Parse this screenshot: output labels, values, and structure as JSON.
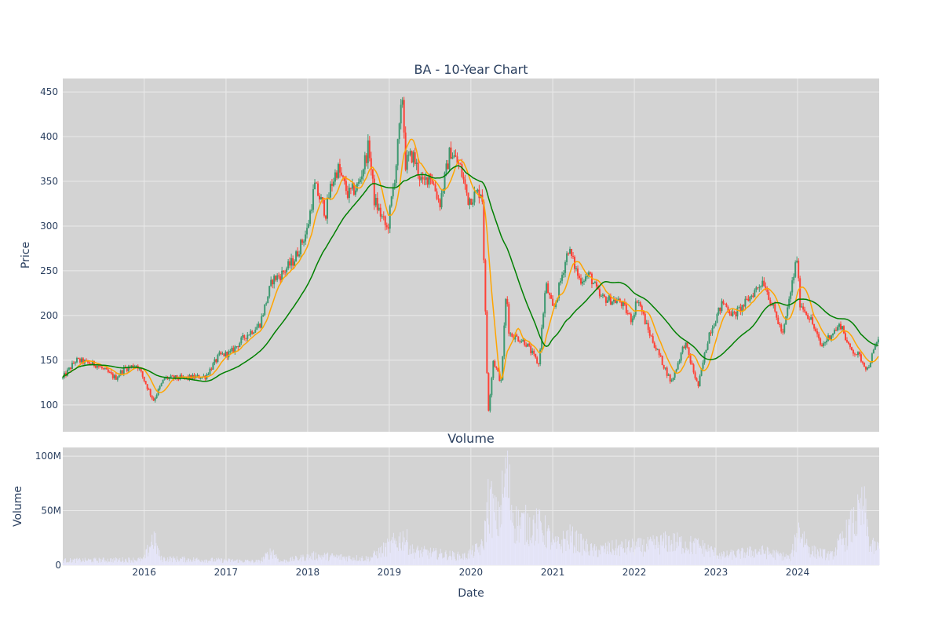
{
  "chart_data": [
    {
      "type": "candlestick",
      "title": "BA - 10-Year Chart",
      "ylabel": "Price",
      "xlabel": "",
      "x_range": [
        "2015-01-02",
        "2024-12-31"
      ],
      "ylim": [
        70,
        465
      ],
      "y_ticks": [
        100,
        150,
        200,
        250,
        300,
        350,
        400,
        450
      ],
      "grid": true,
      "colors": {
        "increasing": "#3d9970",
        "decreasing": "#ff4136",
        "ma_short": "#ffa500",
        "ma_long": "#008000",
        "plot_bg": "#d3d3d3",
        "grid": "#eaeaea"
      },
      "price_anchors": [
        [
          "2015-01-02",
          130
        ],
        [
          "2015-03-01",
          150
        ],
        [
          "2015-06-01",
          145
        ],
        [
          "2015-08-25",
          130
        ],
        [
          "2015-10-01",
          140
        ],
        [
          "2015-12-01",
          145
        ],
        [
          "2016-02-11",
          105
        ],
        [
          "2016-04-01",
          130
        ],
        [
          "2016-07-01",
          130
        ],
        [
          "2016-10-01",
          132
        ],
        [
          "2016-12-01",
          155
        ],
        [
          "2017-01-20",
          158
        ],
        [
          "2017-04-01",
          178
        ],
        [
          "2017-06-01",
          190
        ],
        [
          "2017-07-27",
          240
        ],
        [
          "2017-09-01",
          245
        ],
        [
          "2017-11-01",
          262
        ],
        [
          "2017-12-29",
          295
        ],
        [
          "2018-02-01",
          345
        ],
        [
          "2018-03-23",
          315
        ],
        [
          "2018-04-15",
          345
        ],
        [
          "2018-05-15",
          365
        ],
        [
          "2018-07-01",
          335
        ],
        [
          "2018-08-15",
          345
        ],
        [
          "2018-10-02",
          390
        ],
        [
          "2018-10-25",
          330
        ],
        [
          "2018-12-24",
          295
        ],
        [
          "2019-01-30",
          365
        ],
        [
          "2019-03-01",
          445
        ],
        [
          "2019-03-15",
          370
        ],
        [
          "2019-04-15",
          380
        ],
        [
          "2019-06-01",
          345
        ],
        [
          "2019-07-01",
          360
        ],
        [
          "2019-08-15",
          325
        ],
        [
          "2019-10-01",
          385
        ],
        [
          "2019-11-15",
          365
        ],
        [
          "2019-12-20",
          330
        ],
        [
          "2020-02-20",
          340
        ],
        [
          "2020-03-18",
          90
        ],
        [
          "2020-04-10",
          150
        ],
        [
          "2020-05-15",
          125
        ],
        [
          "2020-06-08",
          230
        ],
        [
          "2020-06-20",
          180
        ],
        [
          "2020-09-01",
          170
        ],
        [
          "2020-10-30",
          145
        ],
        [
          "2020-12-01",
          235
        ],
        [
          "2021-01-04",
          205
        ],
        [
          "2021-03-12",
          275
        ],
        [
          "2021-05-01",
          240
        ],
        [
          "2021-06-15",
          245
        ],
        [
          "2021-08-01",
          220
        ],
        [
          "2021-11-01",
          215
        ],
        [
          "2021-12-20",
          195
        ],
        [
          "2022-01-15",
          220
        ],
        [
          "2022-03-01",
          185
        ],
        [
          "2022-06-15",
          125
        ],
        [
          "2022-08-15",
          170
        ],
        [
          "2022-10-13",
          120
        ],
        [
          "2022-12-01",
          180
        ],
        [
          "2023-02-01",
          215
        ],
        [
          "2023-03-20",
          200
        ],
        [
          "2023-05-01",
          210
        ],
        [
          "2023-07-31",
          240
        ],
        [
          "2023-10-27",
          178
        ],
        [
          "2023-12-29",
          265
        ],
        [
          "2024-01-10",
          215
        ],
        [
          "2024-03-01",
          195
        ],
        [
          "2024-04-15",
          165
        ],
        [
          "2024-06-01",
          180
        ],
        [
          "2024-07-15",
          190
        ],
        [
          "2024-08-15",
          165
        ],
        [
          "2024-10-01",
          155
        ],
        [
          "2024-11-08",
          140
        ],
        [
          "2024-12-31",
          177
        ]
      ],
      "series": [
        {
          "values_from": "price_anchors",
          "kind": "candlestick"
        },
        {
          "window": "short",
          "kind": "line"
        },
        {
          "window": "long",
          "kind": "line"
        }
      ]
    },
    {
      "type": "bar",
      "title": "Volume",
      "ylabel": "Volume",
      "xlabel": "Date",
      "ylim": [
        0,
        108000000
      ],
      "y_ticks": [
        {
          "value": 0,
          "label": "0"
        },
        {
          "value": 50000000,
          "label": "50M"
        },
        {
          "value": 100000000,
          "label": "100M"
        }
      ],
      "x_tick_labels": [
        "2016",
        "2017",
        "2018",
        "2019",
        "2020",
        "2021",
        "2022",
        "2023",
        "2024"
      ],
      "grid": true,
      "bar_color": "#e6e6fa",
      "volume_anchors": [
        [
          "2015-01-02",
          5000000
        ],
        [
          "2015-12-31",
          6000000
        ],
        [
          "2016-02-10",
          30000000
        ],
        [
          "2016-03-15",
          7000000
        ],
        [
          "2017-06-01",
          4000000
        ],
        [
          "2017-07-27",
          15000000
        ],
        [
          "2017-09-01",
          4000000
        ],
        [
          "2018-02-01",
          10000000
        ],
        [
          "2018-10-01",
          7000000
        ],
        [
          "2019-03-10",
          30000000
        ],
        [
          "2019-04-15",
          15000000
        ],
        [
          "2019-12-01",
          9000000
        ],
        [
          "2020-02-25",
          20000000
        ],
        [
          "2020-03-20",
          70000000
        ],
        [
          "2020-05-01",
          45000000
        ],
        [
          "2020-06-08",
          95000000
        ],
        [
          "2020-07-15",
          45000000
        ],
        [
          "2020-11-15",
          40000000
        ],
        [
          "2021-01-15",
          20000000
        ],
        [
          "2021-03-15",
          30000000
        ],
        [
          "2021-07-01",
          15000000
        ],
        [
          "2021-10-01",
          18000000
        ],
        [
          "2022-03-01",
          20000000
        ],
        [
          "2022-06-01",
          25000000
        ],
        [
          "2022-10-20",
          20000000
        ],
        [
          "2023-02-01",
          10000000
        ],
        [
          "2023-07-15",
          15000000
        ],
        [
          "2023-12-01",
          8000000
        ],
        [
          "2024-01-08",
          38000000
        ],
        [
          "2024-03-01",
          15000000
        ],
        [
          "2024-06-01",
          10000000
        ],
        [
          "2024-10-24",
          60000000
        ],
        [
          "2024-11-20",
          20000000
        ],
        [
          "2024-12-31",
          18000000
        ]
      ]
    }
  ]
}
